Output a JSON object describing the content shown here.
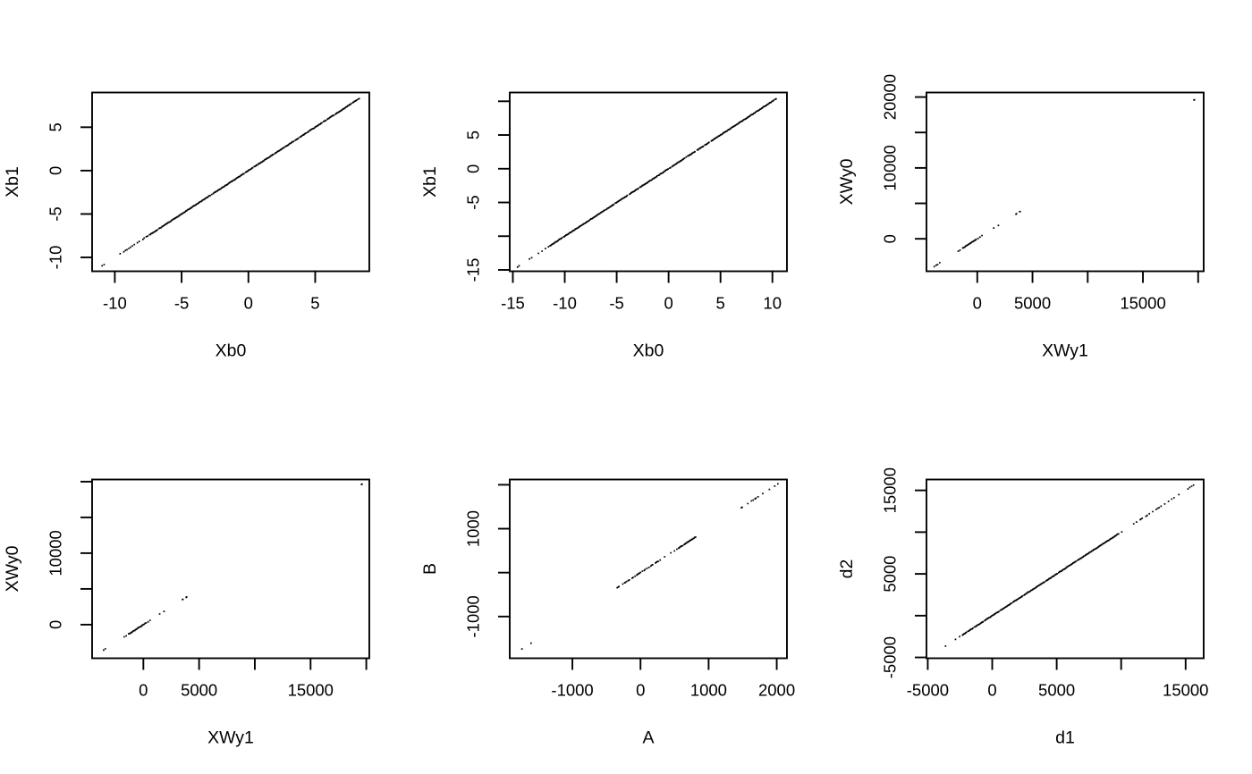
{
  "layout": {
    "rows": 2,
    "cols": 3,
    "background": "#ffffff",
    "foreground": "#000000",
    "point_color": "#000000",
    "grid": "off",
    "legend": "none"
  },
  "chart_data": [
    {
      "type": "scatter",
      "panel": "top-left",
      "xlabel": "Xb0",
      "ylabel": "Xb1",
      "relation": "y = x identity line of tiny point markers",
      "xlim": [
        -11.7,
        9.05
      ],
      "ylim": [
        -11.6,
        9.0
      ],
      "xticks": [
        {
          "v": -10,
          "label": "-10"
        },
        {
          "v": -5,
          "label": "-5"
        },
        {
          "v": 0,
          "label": "0"
        },
        {
          "v": 5,
          "label": "5"
        }
      ],
      "yticks": [
        {
          "v": 5,
          "label": "5"
        },
        {
          "v": 0,
          "label": "0"
        },
        {
          "v": -5,
          "label": "-5"
        },
        {
          "v": -10,
          "label": "-10"
        }
      ],
      "diag_segments": [
        {
          "from": -10.95,
          "to": -10.8,
          "density": "dot"
        },
        {
          "from": -10.45,
          "to": -9.3,
          "density": "sparse"
        },
        {
          "from": -9.2,
          "to": -7.4,
          "density": "medium"
        },
        {
          "from": -7.4,
          "to": 8.1,
          "density": "dense"
        },
        {
          "from": 8.2,
          "to": 8.3,
          "density": "dot"
        }
      ]
    },
    {
      "type": "scatter",
      "panel": "top-middle",
      "xlabel": "Xb0",
      "ylabel": "Xb1",
      "relation": "y = x identity line of tiny point markers",
      "xlim": [
        -15.3,
        11.4
      ],
      "ylim": [
        -15.2,
        11.3
      ],
      "xticks": [
        {
          "v": -15,
          "label": "-15"
        },
        {
          "v": -10,
          "label": "-10"
        },
        {
          "v": -5,
          "label": "-5"
        },
        {
          "v": 0,
          "label": "0"
        },
        {
          "v": 5,
          "label": "5"
        },
        {
          "v": 10,
          "label": "10"
        }
      ],
      "yticks": [
        {
          "v": 10,
          "label": ""
        },
        {
          "v": 5,
          "label": "5"
        },
        {
          "v": 0,
          "label": "0"
        },
        {
          "v": -5,
          "label": "-5"
        },
        {
          "v": -10,
          "label": ""
        },
        {
          "v": -15,
          "label": "-15"
        }
      ],
      "diag_segments": [
        {
          "from": -14.55,
          "to": -14.4,
          "density": "dot"
        },
        {
          "from": -13.8,
          "to": -12.2,
          "density": "sparse"
        },
        {
          "from": -12.2,
          "to": -11.4,
          "density": "medium"
        },
        {
          "from": -11.4,
          "to": 10.1,
          "density": "dense"
        },
        {
          "from": 10.25,
          "to": 10.35,
          "density": "dot"
        }
      ]
    },
    {
      "type": "scatter",
      "panel": "top-right",
      "xlabel": "XWy1",
      "ylabel": "XWy0",
      "relation": "broken y = x diagonal clusters with one isolated upper-right point",
      "xlim": [
        -4600,
        20500
      ],
      "ylim": [
        -4580,
        20640
      ],
      "xticks": [
        {
          "v": 0,
          "label": "0"
        },
        {
          "v": 5000,
          "label": "5000"
        },
        {
          "v": 10000,
          "label": ""
        },
        {
          "v": 15000,
          "label": "15000"
        },
        {
          "v": 20000,
          "label": ""
        }
      ],
      "yticks": [
        {
          "v": 20000,
          "label": "20000"
        },
        {
          "v": 15000,
          "label": ""
        },
        {
          "v": 10000,
          "label": "10000"
        },
        {
          "v": 5000,
          "label": ""
        },
        {
          "v": 0,
          "label": "0"
        }
      ],
      "diag_segments": [
        {
          "from": -3900,
          "to": -3400,
          "density": "medium"
        },
        {
          "from": -1740,
          "to": -1560,
          "density": "medium"
        },
        {
          "from": -1320,
          "to": -150,
          "density": "dense"
        },
        {
          "from": -100,
          "to": 690,
          "density": "gappy"
        },
        {
          "from": 1530,
          "to": 1900,
          "density": "sparse"
        },
        {
          "from": 3510,
          "to": 3550,
          "density": "dot"
        },
        {
          "from": 3840,
          "to": 3880,
          "density": "dot"
        },
        {
          "from": 19620,
          "to": 19660,
          "density": "dot"
        }
      ]
    },
    {
      "type": "scatter",
      "panel": "bottom-left",
      "xlabel": "XWy1",
      "ylabel": "XWy0",
      "relation": "broken y = x diagonal clusters with one isolated upper-right point",
      "xlim": [
        -4600,
        20270
      ],
      "ylim": [
        -4700,
        20300
      ],
      "xticks": [
        {
          "v": 0,
          "label": "0"
        },
        {
          "v": 5000,
          "label": "5000"
        },
        {
          "v": 10000,
          "label": ""
        },
        {
          "v": 15000,
          "label": "15000"
        },
        {
          "v": 20000,
          "label": ""
        }
      ],
      "yticks": [
        {
          "v": 20000,
          "label": ""
        },
        {
          "v": 15000,
          "label": ""
        },
        {
          "v": 10000,
          "label": "10000"
        },
        {
          "v": 5000,
          "label": ""
        },
        {
          "v": 0,
          "label": "0"
        }
      ],
      "diag_segments": [
        {
          "from": -3900,
          "to": -3400,
          "density": "medium"
        },
        {
          "from": -1740,
          "to": -1560,
          "density": "medium"
        },
        {
          "from": -1320,
          "to": -150,
          "density": "dense"
        },
        {
          "from": -100,
          "to": 690,
          "density": "gappy"
        },
        {
          "from": 1530,
          "to": 1900,
          "density": "sparse"
        },
        {
          "from": 3510,
          "to": 3550,
          "density": "dot"
        },
        {
          "from": 3840,
          "to": 3880,
          "density": "dot"
        },
        {
          "from": 19580,
          "to": 19620,
          "density": "dot"
        }
      ]
    },
    {
      "type": "scatter",
      "panel": "bottom-middle",
      "xlabel": "A",
      "ylabel": "B",
      "relation": "broken y = x diagonal clusters in three groups",
      "xlim": [
        -1920,
        2150
      ],
      "ylim": [
        -1950,
        2120
      ],
      "xticks": [
        {
          "v": -1000,
          "label": "-1000"
        },
        {
          "v": 0,
          "label": "0"
        },
        {
          "v": 1000,
          "label": "1000"
        },
        {
          "v": 2000,
          "label": "2000"
        }
      ],
      "yticks": [
        {
          "v": 2000,
          "label": ""
        },
        {
          "v": 1000,
          "label": "1000"
        },
        {
          "v": 0,
          "label": ""
        },
        {
          "v": -1000,
          "label": "-1000"
        }
      ],
      "diag_segments": [
        {
          "from": -1800,
          "to": -1740,
          "density": "medium"
        },
        {
          "from": -1590,
          "to": -1520,
          "density": "sparse"
        },
        {
          "from": -370,
          "to": 260,
          "density": "gappy"
        },
        {
          "from": 300,
          "to": 540,
          "density": "sparse"
        },
        {
          "from": 560,
          "to": 810,
          "density": "dense"
        },
        {
          "from": 1480,
          "to": 1710,
          "density": "gappy"
        },
        {
          "from": 1730,
          "to": 2020,
          "density": "sparse"
        }
      ]
    },
    {
      "type": "scatter",
      "panel": "bottom-right",
      "xlabel": "d1",
      "ylabel": "d2",
      "relation": "y = x identity line, dense center, sparse dotted ends",
      "xlim": [
        -5100,
        16400
      ],
      "ylim": [
        -5100,
        16300
      ],
      "xticks": [
        {
          "v": -5000,
          "label": "-5000"
        },
        {
          "v": 0,
          "label": "0"
        },
        {
          "v": 5000,
          "label": "5000"
        },
        {
          "v": 10000,
          "label": ""
        },
        {
          "v": 15000,
          "label": "15000"
        }
      ],
      "yticks": [
        {
          "v": 15000,
          "label": "15000"
        },
        {
          "v": 10000,
          "label": ""
        },
        {
          "v": 5000,
          "label": "5000"
        },
        {
          "v": 0,
          "label": ""
        },
        {
          "v": -5000,
          "label": "-5000"
        }
      ],
      "diag_segments": [
        {
          "from": -4450,
          "to": -2300,
          "density": "sparse"
        },
        {
          "from": -2300,
          "to": 9800,
          "density": "dense"
        },
        {
          "from": 9800,
          "to": 11500,
          "density": "sparse"
        },
        {
          "from": 11500,
          "to": 13100,
          "density": "medium"
        },
        {
          "from": 13100,
          "to": 15200,
          "density": "sparse"
        },
        {
          "from": 15300,
          "to": 15620,
          "density": "medium"
        }
      ]
    }
  ]
}
